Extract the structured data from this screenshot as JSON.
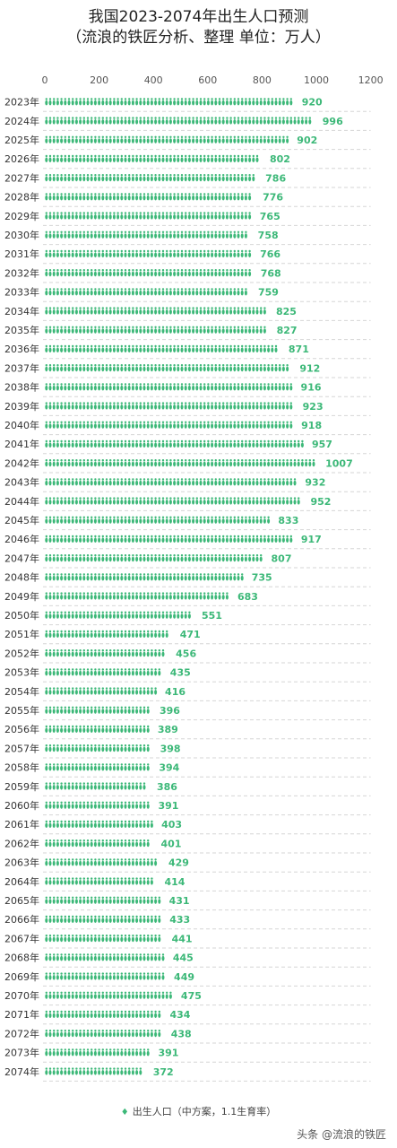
{
  "chart_data": {
    "type": "bar",
    "orientation": "horizontal",
    "title": "我国2023-2074年出生人口预测",
    "subtitle": "（流浪的铁匠分析、整理  单位：万人）",
    "xlim": [
      0,
      1200
    ],
    "xticks": [
      0,
      200,
      400,
      600,
      800,
      1000,
      1200
    ],
    "grid": false,
    "legend_position": "bottom",
    "bar_color": "#3cb878",
    "categories": [
      "2023年",
      "2024年",
      "2025年",
      "2026年",
      "2027年",
      "2028年",
      "2029年",
      "2030年",
      "2031年",
      "2032年",
      "2033年",
      "2034年",
      "2035年",
      "2036年",
      "2037年",
      "2038年",
      "2039年",
      "2040年",
      "2041年",
      "2042年",
      "2043年",
      "2044年",
      "2045年",
      "2046年",
      "2047年",
      "2048年",
      "2049年",
      "2050年",
      "2051年",
      "2052年",
      "2053年",
      "2054年",
      "2055年",
      "2056年",
      "2057年",
      "2058年",
      "2059年",
      "2060年",
      "2061年",
      "2062年",
      "2063年",
      "2064年",
      "2065年",
      "2066年",
      "2067年",
      "2068年",
      "2069年",
      "2070年",
      "2071年",
      "2072年",
      "2073年",
      "2074年"
    ],
    "series": [
      {
        "name": "出生人口（中方案，1.1生育率）",
        "values": [
          920,
          996,
          902,
          802,
          786,
          776,
          765,
          758,
          766,
          768,
          759,
          825,
          827,
          871,
          912,
          916,
          923,
          918,
          957,
          1007,
          932,
          952,
          833,
          917,
          807,
          735,
          683,
          551,
          471,
          456,
          435,
          416,
          396,
          389,
          398,
          394,
          386,
          391,
          403,
          401,
          429,
          414,
          431,
          433,
          441,
          445,
          449,
          475,
          434,
          438,
          391,
          372
        ]
      }
    ]
  },
  "watermark": "头条 @流浪的铁匠"
}
